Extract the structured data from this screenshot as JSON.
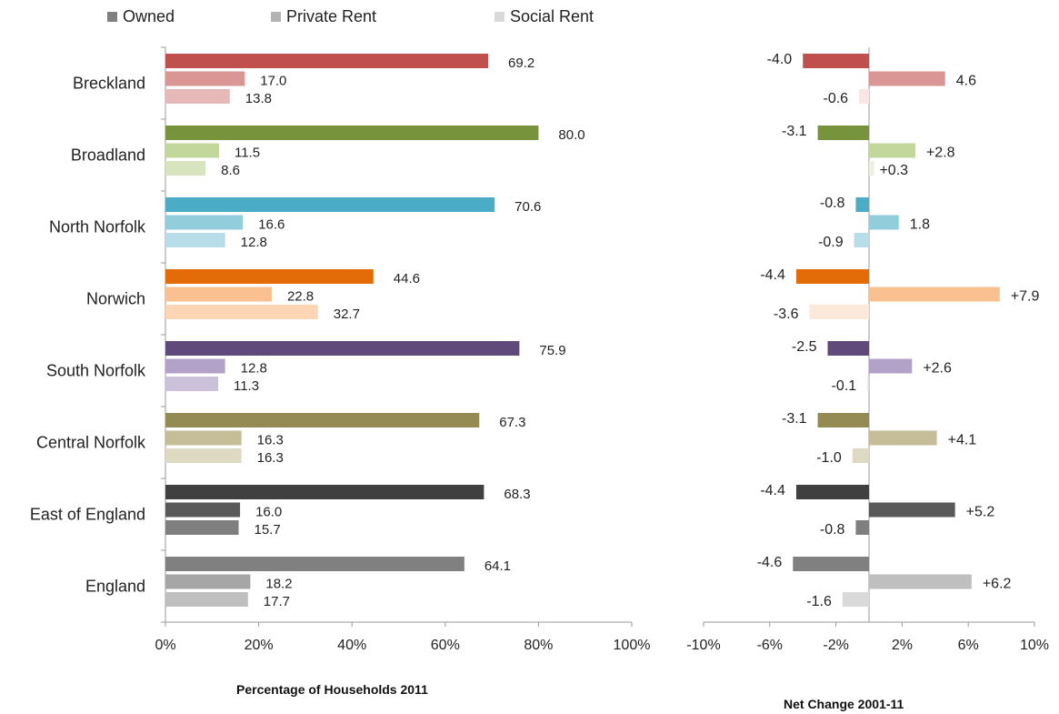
{
  "legend": {
    "items": [
      {
        "label": "Owned",
        "color": "#808080"
      },
      {
        "label": "Private Rent",
        "color": "#b3b3b3"
      },
      {
        "label": "Social Rent",
        "color": "#d9d9d9"
      }
    ]
  },
  "chart_data": [
    {
      "type": "bar",
      "orientation": "horizontal",
      "xlabel": "Percentage of Households 2011",
      "xlim": [
        0,
        100
      ],
      "x_ticks": [
        "0%",
        "20%",
        "40%",
        "60%",
        "80%",
        "100%"
      ],
      "categories": [
        "Breckland",
        "Broadland",
        "North Norfolk",
        "Norwich",
        "South Norfolk",
        "Central Norfolk",
        "East of England",
        "England"
      ],
      "series": [
        {
          "name": "Owned",
          "values": [
            69.2,
            80.0,
            70.6,
            44.6,
            75.9,
            67.3,
            68.3,
            64.1
          ],
          "labels": [
            "69.2",
            "80.0",
            "70.6",
            "44.6",
            "75.9",
            "67.3",
            "68.3",
            "64.1"
          ]
        },
        {
          "name": "Private Rent",
          "values": [
            17.0,
            11.5,
            16.6,
            22.8,
            12.8,
            16.3,
            16.0,
            18.2
          ],
          "labels": [
            "17.0",
            "11.5",
            "16.6",
            "22.8",
            "12.8",
            "16.3",
            "16.0",
            "18.2"
          ]
        },
        {
          "name": "Social Rent",
          "values": [
            13.8,
            8.6,
            12.8,
            32.7,
            11.3,
            16.3,
            15.7,
            17.7
          ],
          "labels": [
            "13.8",
            "8.6",
            "12.8",
            "32.7",
            "11.3",
            "16.3",
            "15.7",
            "17.7"
          ]
        }
      ],
      "colors": [
        [
          "#c0504d",
          "#da9694",
          "#e6b9b8"
        ],
        [
          "#77933c",
          "#c3d69b",
          "#d7e4bd"
        ],
        [
          "#4bacc6",
          "#92cddc",
          "#b7dee8"
        ],
        [
          "#e36c09",
          "#fac090",
          "#fcd5b5"
        ],
        [
          "#604a7b",
          "#b3a2c7",
          "#ccc1da"
        ],
        [
          "#948a54",
          "#c4bd97",
          "#ddd9c3"
        ],
        [
          "#404040",
          "#595959",
          "#7f7f7f"
        ],
        [
          "#808080",
          "#a6a6a6",
          "#bfbfbf"
        ]
      ]
    },
    {
      "type": "bar",
      "orientation": "horizontal",
      "xlabel": "Net Change 2001-11",
      "xlim": [
        -10,
        10
      ],
      "x_ticks": [
        "-10%",
        "-6%",
        "-2%",
        "2%",
        "6%",
        "10%"
      ],
      "categories": [
        "Breckland",
        "Broadland",
        "North Norfolk",
        "Norwich",
        "South Norfolk",
        "Central Norfolk",
        "East of England",
        "England"
      ],
      "series": [
        {
          "name": "Owned",
          "values": [
            -4.0,
            -3.1,
            -0.8,
            -4.4,
            -2.5,
            -3.1,
            -4.4,
            -4.6
          ],
          "labels": [
            "-4.0",
            "-3.1",
            "-0.8",
            "-4.4",
            "-2.5",
            "-3.1",
            "-4.4",
            "-4.6"
          ]
        },
        {
          "name": "Private Rent",
          "values": [
            4.6,
            2.8,
            1.8,
            7.9,
            2.6,
            4.1,
            5.2,
            6.2
          ],
          "labels": [
            "4.6",
            "+2.8",
            "1.8",
            "+7.9",
            "+2.6",
            "+4.1",
            "+5.2",
            "+6.2"
          ]
        },
        {
          "name": "Social Rent",
          "values": [
            -0.6,
            0.3,
            -0.9,
            -3.6,
            -0.1,
            -1.0,
            -0.8,
            -1.6
          ],
          "labels": [
            "-0.6",
            "+0.3",
            "-0.9",
            "-3.6",
            "-0.1",
            "-1.0",
            "-0.8",
            "-1.6"
          ]
        }
      ],
      "colors": [
        [
          "#c0504d",
          "#da9694",
          "#fbe5e5"
        ],
        [
          "#77933c",
          "#c3d69b",
          "#ebf1de"
        ],
        [
          "#4bacc6",
          "#92cddc",
          "#b7dee8"
        ],
        [
          "#e36c09",
          "#fac090",
          "#fde9d9"
        ],
        [
          "#604a7b",
          "#b3a2c7",
          "#e4dfec"
        ],
        [
          "#948a54",
          "#c4bd97",
          "#ddd9c3"
        ],
        [
          "#404040",
          "#595959",
          "#7f7f7f"
        ],
        [
          "#808080",
          "#bfbfbf",
          "#d9d9d9"
        ]
      ]
    }
  ]
}
